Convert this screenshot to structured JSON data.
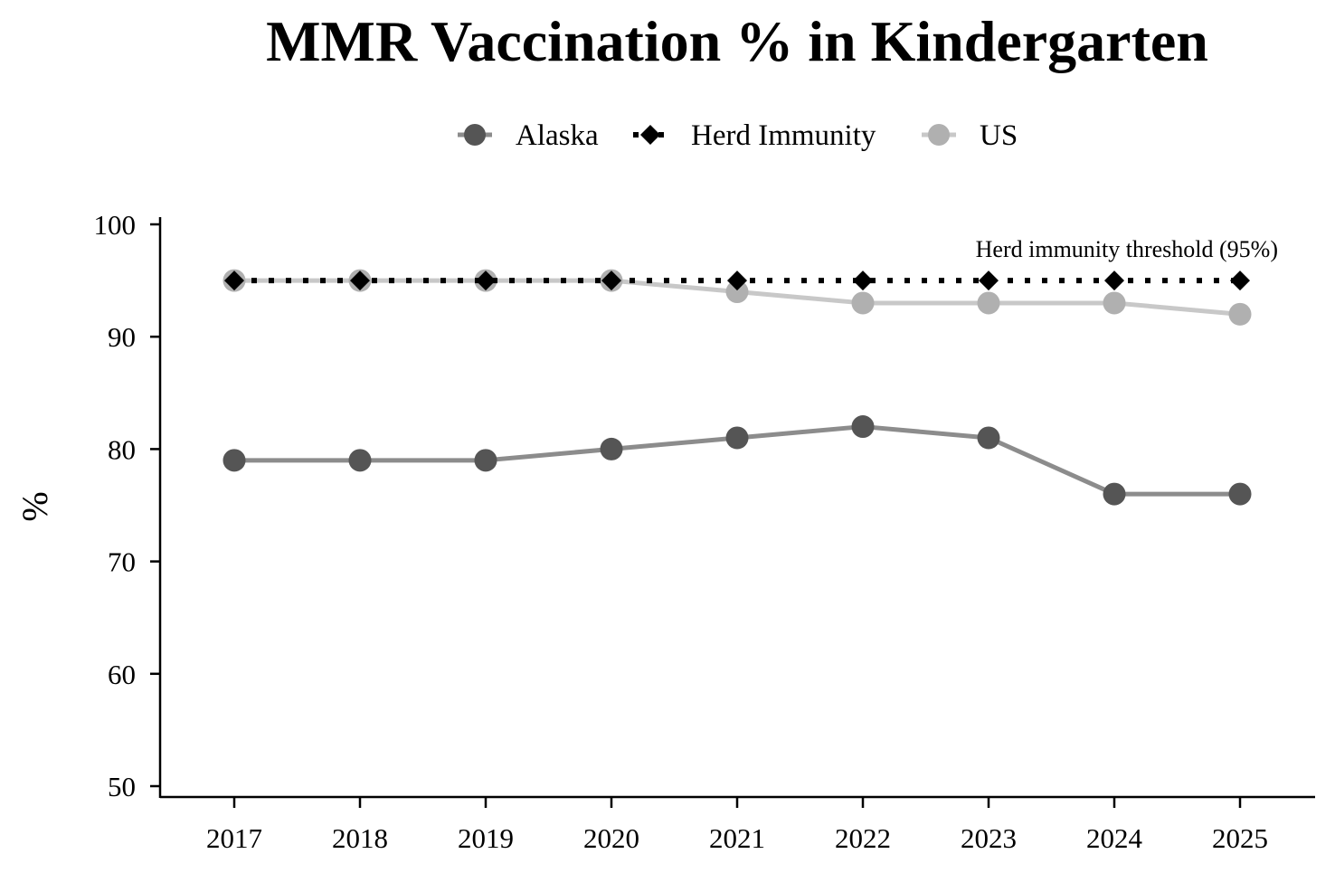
{
  "chart_data": {
    "type": "line",
    "title": "MMR Vaccination % in Kindergarten",
    "xlabel": "",
    "ylabel": "%",
    "categories": [
      "2017",
      "2018",
      "2019",
      "2020",
      "2021",
      "2022",
      "2023",
      "2024",
      "2025"
    ],
    "yticks": [
      "50",
      "60",
      "70",
      "80",
      "90",
      "100"
    ],
    "ylim": [
      50,
      100
    ],
    "legend_position": "top-center",
    "annotation": "Herd immunity threshold (95%)",
    "series": [
      {
        "name": "Alaska",
        "values": [
          79,
          79,
          79,
          80,
          81,
          82,
          81,
          76,
          76
        ],
        "color": "#8c8c8c",
        "marker_color": "#555555",
        "marker": "circle",
        "dash": "solid"
      },
      {
        "name": "Herd Immunity",
        "values": [
          95,
          95,
          95,
          95,
          95,
          95,
          95,
          95,
          95
        ],
        "color": "#000000",
        "marker_color": "#000000",
        "marker": "diamond",
        "dash": "dotted"
      },
      {
        "name": "US",
        "values": [
          95,
          95,
          95,
          95,
          94,
          93,
          93,
          93,
          92
        ],
        "color": "#c8c8c8",
        "marker_color": "#b0b0b0",
        "marker": "circle",
        "dash": "solid"
      }
    ],
    "grid": false
  }
}
